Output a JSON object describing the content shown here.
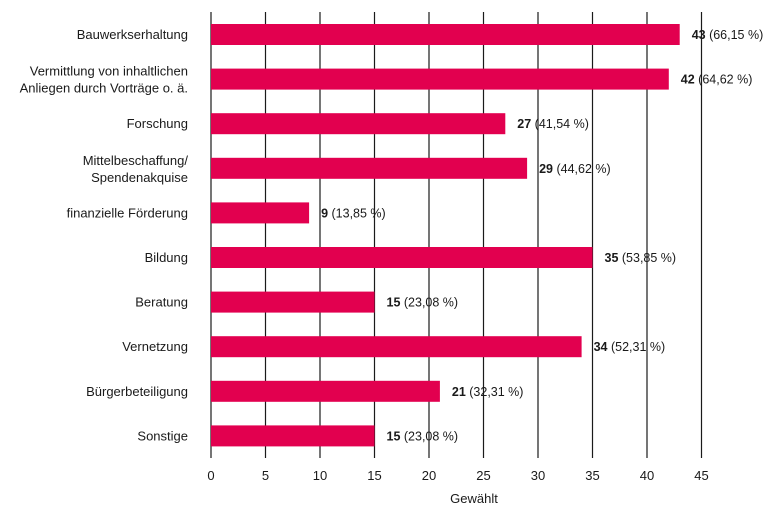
{
  "chart_data": {
    "type": "bar",
    "orientation": "horizontal",
    "categories": [
      "Bauwerkserhaltung",
      "Vermittlung von inhaltlichen\nAnliegen durch Vorträge o. ä.",
      "Forschung",
      "Mittelbeschaffung/\nSpendenakquise",
      "finanzielle Förderung",
      "Bildung",
      "Beratung",
      "Vernetzung",
      "Bürgerbeteiligung",
      "Sonstige"
    ],
    "values": [
      43,
      42,
      27,
      29,
      9,
      35,
      15,
      34,
      21,
      15
    ],
    "value_labels": [
      "43",
      "42",
      "27",
      "29",
      "9",
      "35",
      "15",
      "34",
      "21",
      "15"
    ],
    "percent_labels": [
      "(66,15 %)",
      "(64,62 %)",
      "(41,54 %)",
      "(44,62 %)",
      "(13,85 %)",
      "(53,85 %)",
      "(23,08 %)",
      "(52,31 %)",
      "(32,31 %)",
      "(23,08 %)"
    ],
    "title": "",
    "xlabel": "Gewählt",
    "ylabel": "",
    "xlim": [
      0,
      45
    ],
    "xticks": [
      0,
      5,
      10,
      15,
      20,
      25,
      30,
      35,
      40,
      45
    ],
    "grid": "vertical lines",
    "legend": "none",
    "colors": {
      "bar": "#e2004f",
      "grid": "#1a1a1a",
      "text": "#1a1a1a"
    }
  }
}
